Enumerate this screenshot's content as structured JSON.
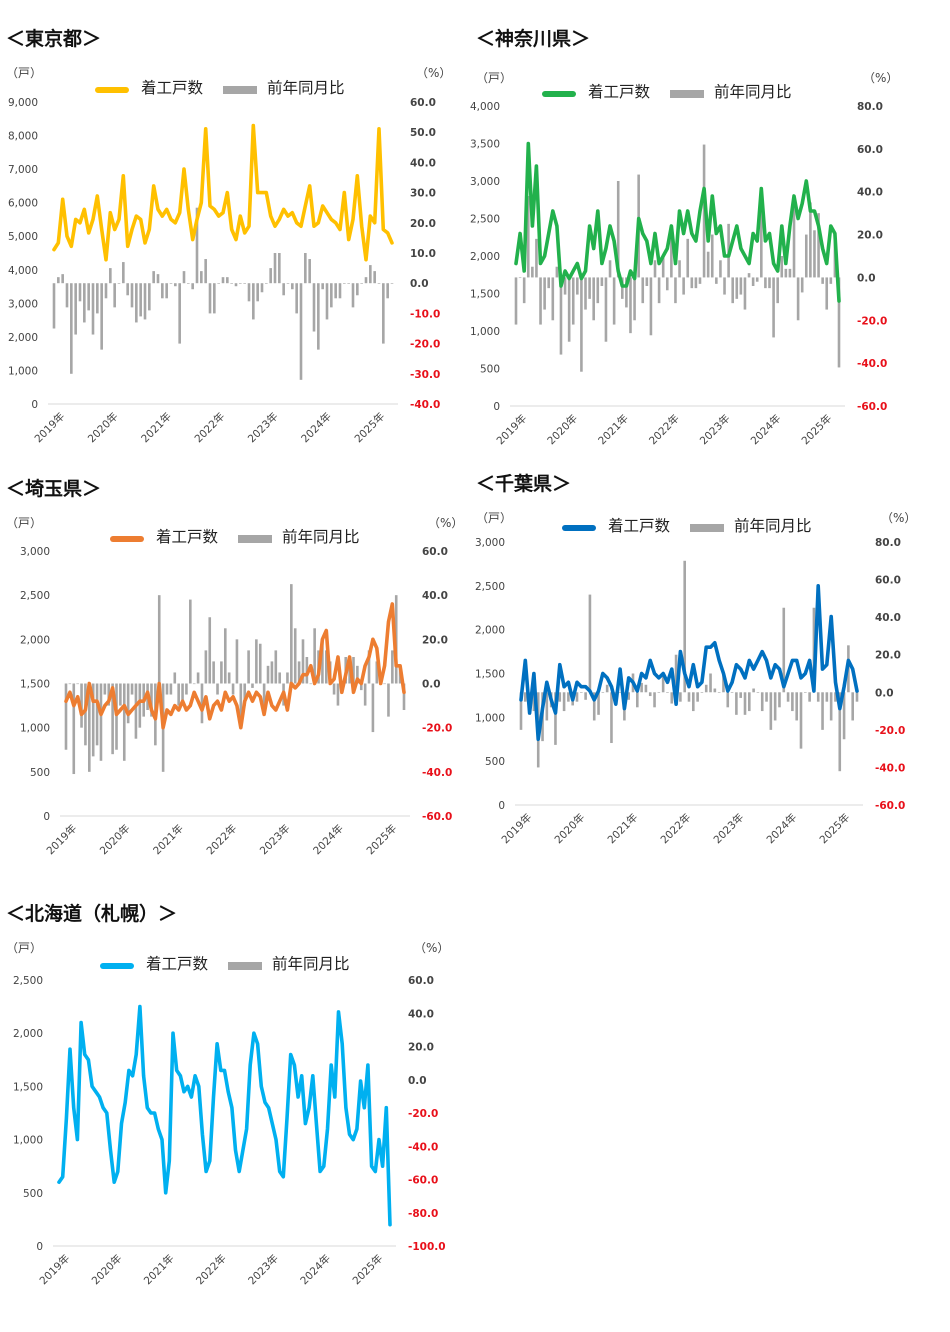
{
  "x_axis_years": [
    "2019年",
    "2020年",
    "2021年",
    "2022年",
    "2023年",
    "2024年",
    "2025年"
  ],
  "legend": {
    "line_label": "着工戸数",
    "bar_label": "前年同月比"
  },
  "chart_data": [
    {
      "type": "bar+line",
      "title": "＜東京都＞",
      "left_unit": "（戸）",
      "right_unit": "（%）",
      "line_color": "#ffc000",
      "bar_color": "#a6a6a6",
      "ylim_left": [
        0,
        9000
      ],
      "ylim_right": [
        -40,
        60
      ],
      "left_ticks": [
        "9,000",
        "8,000",
        "7,000",
        "6,000",
        "5,000",
        "4,000",
        "3,000",
        "2,000",
        "1,000",
        "0"
      ],
      "right_ticks": [
        "60.0",
        "50.0",
        "40.0",
        "30.0",
        "20.0",
        "10.0",
        "0.0",
        "-10.0",
        "-20.0",
        "-30.0",
        "-40.0"
      ],
      "housing_starts": [
        4600,
        4800,
        6100,
        5000,
        4700,
        5500,
        5400,
        5800,
        5100,
        5500,
        6200,
        5200,
        4300,
        5700,
        5200,
        5500,
        6800,
        4700,
        5200,
        5600,
        5500,
        4800,
        5200,
        6500,
        5800,
        5600,
        5800,
        5500,
        5400,
        5700,
        7000,
        5800,
        4900,
        5500,
        6000,
        8200,
        5900,
        5800,
        5600,
        5700,
        6300,
        5200,
        4900,
        5600,
        5100,
        5300,
        8300,
        6300,
        6300,
        6300,
        5600,
        5300,
        5500,
        5800,
        5600,
        5700,
        5400,
        5300,
        5900,
        6500,
        5300,
        5400,
        5900,
        5700,
        5500,
        5400,
        5200,
        6300,
        4900,
        5500,
        6800,
        5300,
        4300,
        5600,
        5400,
        8200,
        5200,
        5100,
        4800
      ],
      "yoy_percent": [
        -15,
        2,
        3,
        -8,
        -30,
        -17,
        -6,
        -13,
        -9,
        -17,
        -10,
        -22,
        -5,
        5,
        -8,
        0,
        7,
        -4,
        -8,
        -13,
        -11,
        -12,
        -9,
        4,
        3,
        -5,
        -5,
        0,
        -1,
        -20,
        4,
        0,
        -2,
        25,
        4,
        8,
        -10,
        -10,
        0,
        2,
        2,
        0,
        -1,
        0,
        0,
        -6,
        -12,
        -6,
        -3,
        0,
        5,
        10,
        10,
        -4,
        0,
        -2,
        -10,
        -32,
        10,
        8,
        -16,
        -22,
        -2,
        -12,
        -8,
        -5,
        -5,
        0,
        0,
        -8,
        -4,
        0,
        2,
        6,
        4,
        0,
        -20,
        -5,
        0
      ]
    },
    {
      "type": "bar+line",
      "title": "＜神奈川県＞",
      "left_unit": "（戸）",
      "right_unit": "（%）",
      "line_color": "#22b14c",
      "bar_color": "#a6a6a6",
      "ylim_left": [
        0,
        4000
      ],
      "ylim_right": [
        -60,
        80
      ],
      "left_ticks": [
        "4,000",
        "3,500",
        "3,000",
        "2,500",
        "2,000",
        "1,500",
        "1,000",
        "500",
        "0"
      ],
      "right_ticks": [
        "80.0",
        "60.0",
        "40.0",
        "20.0",
        "0.0",
        "-20.0",
        "-40.0",
        "-60.0"
      ],
      "housing_starts": [
        1900,
        2300,
        1800,
        3500,
        2400,
        3200,
        1900,
        2000,
        2300,
        2600,
        2400,
        1600,
        1800,
        1700,
        1800,
        1900,
        1700,
        1800,
        2400,
        2100,
        2600,
        1900,
        2100,
        2400,
        2200,
        1800,
        1600,
        1600,
        1800,
        1700,
        2500,
        2300,
        2200,
        1900,
        2300,
        1900,
        2000,
        2100,
        2400,
        1900,
        2600,
        2300,
        2600,
        2300,
        2200,
        2600,
        2900,
        2200,
        2800,
        2300,
        2400,
        2000,
        2000,
        2200,
        2400,
        2100,
        2000,
        1900,
        2300,
        2200,
        2900,
        2200,
        2300,
        1900,
        1800,
        2400,
        1900,
        2400,
        2800,
        2500,
        2700,
        3000,
        2600,
        2600,
        2400,
        2100,
        1900,
        2400,
        2300,
        1400
      ],
      "yoy_percent": [
        -22,
        0,
        -12,
        38,
        5,
        18,
        -22,
        -15,
        -5,
        -20,
        5,
        -36,
        -8,
        -30,
        -22,
        -8,
        -44,
        -15,
        -10,
        -20,
        -12,
        -4,
        -30,
        8,
        -22,
        45,
        -10,
        -14,
        -26,
        -20,
        48,
        -12,
        -4,
        -27,
        8,
        -12,
        10,
        -6,
        20,
        -12,
        8,
        -8,
        18,
        -5,
        -5,
        -3,
        62,
        12,
        20,
        -3,
        8,
        -8,
        25,
        -12,
        -10,
        -8,
        -15,
        2,
        -4,
        -2,
        32,
        -5,
        -5,
        -28,
        -12,
        10,
        4,
        4,
        38,
        -20,
        -7,
        20,
        35,
        22,
        30,
        -3,
        -15,
        -3,
        20,
        -42
      ]
    },
    {
      "type": "bar+line",
      "title": "＜埼玉県＞",
      "left_unit": "（戸）",
      "right_unit": "（%）",
      "line_color": "#ed7d31",
      "bar_color": "#a6a6a6",
      "ylim_left": [
        0,
        3000
      ],
      "ylim_right": [
        -60,
        60
      ],
      "left_ticks": [
        "3,000",
        "2,500",
        "2,000",
        "1,500",
        "1,000",
        "500",
        "0"
      ],
      "right_ticks": [
        "60.0",
        "40.0",
        "20.0",
        "0.0",
        "-20.0",
        "-40.0",
        "-60.0"
      ],
      "housing_starts": [
        1300,
        1400,
        1250,
        1350,
        1150,
        1200,
        1500,
        1300,
        1300,
        1150,
        1250,
        1300,
        1450,
        1150,
        1200,
        1250,
        1150,
        1200,
        1250,
        1300,
        1300,
        1400,
        1200,
        1100,
        1500,
        1000,
        1200,
        1150,
        1250,
        1200,
        1300,
        1200,
        1250,
        1400,
        1300,
        1200,
        1350,
        1100,
        1250,
        1300,
        1200,
        1400,
        1300,
        1350,
        1250,
        1000,
        1300,
        1400,
        1300,
        1400,
        1350,
        1150,
        1400,
        1250,
        1200,
        1300,
        1400,
        1200,
        1500,
        1450,
        1500,
        1600,
        1600,
        1700,
        1500,
        1600,
        2000,
        2100,
        1500,
        1550,
        1800,
        1400,
        1600,
        1800,
        1400,
        1550,
        1500,
        1700,
        1800,
        2000,
        1900,
        1500,
        1700,
        2200,
        2400,
        1700,
        1700,
        1400
      ],
      "yoy_percent": [
        -30,
        0,
        -41,
        0,
        -20,
        -28,
        -40,
        -33,
        -28,
        -35,
        -5,
        -10,
        -32,
        -30,
        -10,
        -35,
        -18,
        -5,
        -25,
        -20,
        -15,
        -12,
        -15,
        -28,
        40,
        -40,
        -5,
        -5,
        5,
        -10,
        -8,
        -5,
        38,
        0,
        5,
        -18,
        15,
        30,
        10,
        -5,
        10,
        25,
        5,
        -5,
        20,
        -15,
        -10,
        15,
        -2,
        20,
        18,
        -10,
        8,
        10,
        15,
        5,
        -10,
        5,
        45,
        25,
        10,
        20,
        12,
        0,
        25,
        15,
        20,
        15,
        10,
        -5,
        -10,
        -2,
        12,
        10,
        12,
        8,
        -3,
        -10,
        15,
        -22,
        10,
        5,
        0,
        -15,
        15,
        40,
        8,
        -12
      ]
    },
    {
      "type": "bar+line",
      "title": "＜千葉県＞",
      "left_unit": "（戸）",
      "right_unit": "（%）",
      "line_color": "#0070c0",
      "bar_color": "#a6a6a6",
      "ylim_left": [
        0,
        3000
      ],
      "ylim_right": [
        -60,
        80
      ],
      "left_ticks": [
        "3,000",
        "2,500",
        "2,000",
        "1,500",
        "1,000",
        "500",
        "0"
      ],
      "right_ticks": [
        "80.0",
        "60.0",
        "40.0",
        "20.0",
        "0.0",
        "-20.0",
        "-40.0",
        "-60.0"
      ],
      "housing_starts": [
        1200,
        1650,
        1050,
        1500,
        750,
        1100,
        1400,
        1200,
        1050,
        1600,
        1350,
        1400,
        1200,
        1400,
        1350,
        1350,
        1300,
        1200,
        1300,
        1500,
        1450,
        1350,
        1150,
        1550,
        1100,
        1450,
        1400,
        1300,
        1500,
        1450,
        1650,
        1500,
        1450,
        1500,
        1400,
        1550,
        1150,
        1750,
        1500,
        1350,
        1600,
        1350,
        1400,
        1800,
        1800,
        1850,
        1650,
        1500,
        1300,
        1400,
        1600,
        1550,
        1450,
        1650,
        1550,
        1650,
        1750,
        1650,
        1450,
        1600,
        1550,
        1350,
        1500,
        1650,
        1650,
        1450,
        1500,
        1650,
        1300,
        2500,
        1550,
        1600,
        2150,
        1400,
        1100,
        1350,
        1650,
        1550,
        1300
      ],
      "yoy_percent": [
        -20,
        -5,
        -12,
        -10,
        -40,
        -26,
        -15,
        -8,
        -28,
        -5,
        -10,
        -5,
        -7,
        -5,
        0,
        -4,
        52,
        -15,
        -12,
        0,
        4,
        -27,
        -4,
        0,
        -15,
        -4,
        10,
        -8,
        5,
        4,
        -2,
        -8,
        0,
        10,
        0,
        -6,
        20,
        -5,
        70,
        -5,
        -10,
        -5,
        0,
        4,
        10,
        2,
        0,
        10,
        -8,
        0,
        -12,
        -3,
        -12,
        -10,
        2,
        0,
        -10,
        -5,
        -20,
        -15,
        -8,
        45,
        -5,
        -10,
        -15,
        -30,
        0,
        -5,
        45,
        -5,
        -20,
        -5,
        -15,
        -5,
        -42,
        -25,
        25,
        -15,
        -5
      ]
    },
    {
      "type": "bar+line",
      "title": "＜北海道（札幌）＞",
      "left_unit": "（戸）",
      "right_unit": "（%）",
      "line_color": "#00b0f0",
      "bar_color": "#a6a6a6",
      "ylim_left": [
        0,
        2500
      ],
      "ylim_right": [
        -100,
        60
      ],
      "left_ticks": [
        "2,500",
        "2,000",
        "1,500",
        "1,000",
        "500",
        "0"
      ],
      "right_ticks": [
        "60.0",
        "40.0",
        "20.0",
        "0.0",
        "-20.0",
        "-40.0",
        "-60.0",
        "-80.0",
        "-100.0"
      ],
      "housing_starts": [
        600,
        650,
        1200,
        1850,
        1300,
        1000,
        2100,
        1800,
        1750,
        1500,
        1450,
        1400,
        1300,
        1250,
        900,
        600,
        700,
        1150,
        1350,
        1650,
        1600,
        1800,
        2250,
        1600,
        1300,
        1250,
        1250,
        1100,
        1000,
        500,
        800,
        2000,
        1650,
        1600,
        1450,
        1500,
        1400,
        1600,
        1500,
        1050,
        700,
        800,
        1400,
        1900,
        1650,
        1650,
        1450,
        1300,
        900,
        700,
        900,
        1100,
        1700,
        2000,
        1900,
        1500,
        1350,
        1300,
        1150,
        1000,
        700,
        650,
        1200,
        1800,
        1700,
        1400,
        1600,
        1150,
        1300,
        1600,
        1150,
        700,
        750,
        1100,
        1700,
        1400,
        2200,
        1900,
        1300,
        1050,
        1000,
        1100,
        1550,
        1300,
        1700,
        750,
        700,
        1000,
        750,
        1300,
        200
      ]
    }
  ]
}
